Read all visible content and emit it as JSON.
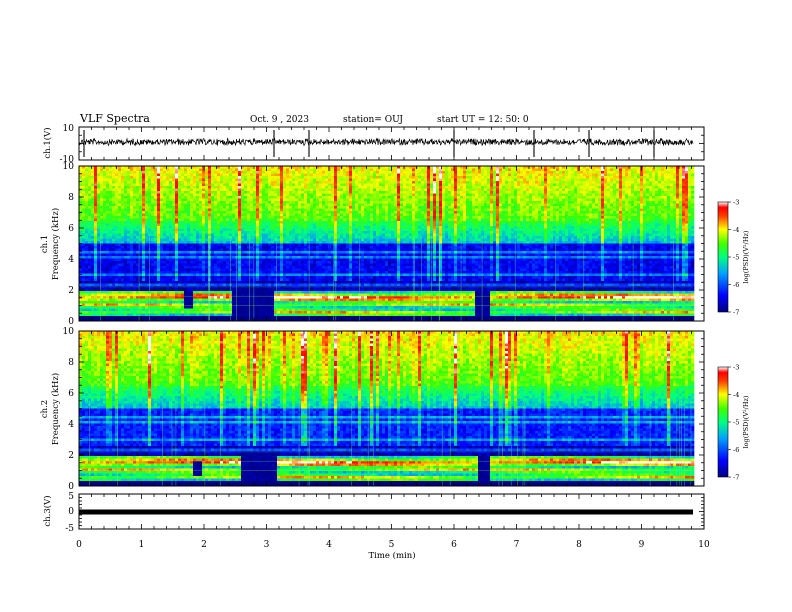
{
  "header": {
    "title": "VLF Spectra",
    "date": "Oct. 9 , 2023",
    "station": "station= OUJ",
    "start": "start UT = 12: 50: 0"
  },
  "chart_data": [
    {
      "type": "line",
      "name": "ch1-voltage",
      "ylabel": "ch.1(V)",
      "ylim": [
        -10,
        10
      ],
      "yticks": [
        "10",
        "-10"
      ],
      "xlim": [
        0,
        10
      ]
    },
    {
      "type": "heatmap",
      "name": "ch1-spectrogram",
      "ylabel": "Frequency (kHz)",
      "channel_label": "ch.1",
      "ylim": [
        0,
        10
      ],
      "yticks": [
        "0",
        "2",
        "4",
        "6",
        "8",
        "10"
      ],
      "xlim": [
        0,
        10
      ],
      "colorbar": {
        "label": "log(PSD)(V²/Hz)",
        "range": [
          -7,
          -3
        ],
        "ticks": [
          "-3",
          "-4",
          "-5",
          "-6",
          "-7"
        ]
      }
    },
    {
      "type": "heatmap",
      "name": "ch2-spectrogram",
      "ylabel": "Frequency (kHz)",
      "channel_label": "ch.2",
      "ylim": [
        0,
        10
      ],
      "yticks": [
        "0",
        "2",
        "4",
        "6",
        "8",
        "10"
      ],
      "xlim": [
        0,
        10
      ],
      "colorbar": {
        "label": "log(PSD)(V²/Hz)",
        "range": [
          -7,
          -3
        ],
        "ticks": [
          "-3",
          "-4",
          "-5",
          "-6",
          "-7"
        ]
      }
    },
    {
      "type": "line",
      "name": "ch3-voltage",
      "ylabel": "ch.3(V)",
      "ylim": [
        -5,
        5
      ],
      "yticks": [
        "5",
        "0",
        "-5"
      ],
      "xlim": [
        0,
        10
      ],
      "xlabel": "Time (min)",
      "xticks": [
        "0",
        "1",
        "2",
        "3",
        "4",
        "5",
        "6",
        "7",
        "8",
        "9",
        "10"
      ]
    }
  ],
  "colors": {
    "axis": "#000000",
    "background": "#ffffff"
  }
}
